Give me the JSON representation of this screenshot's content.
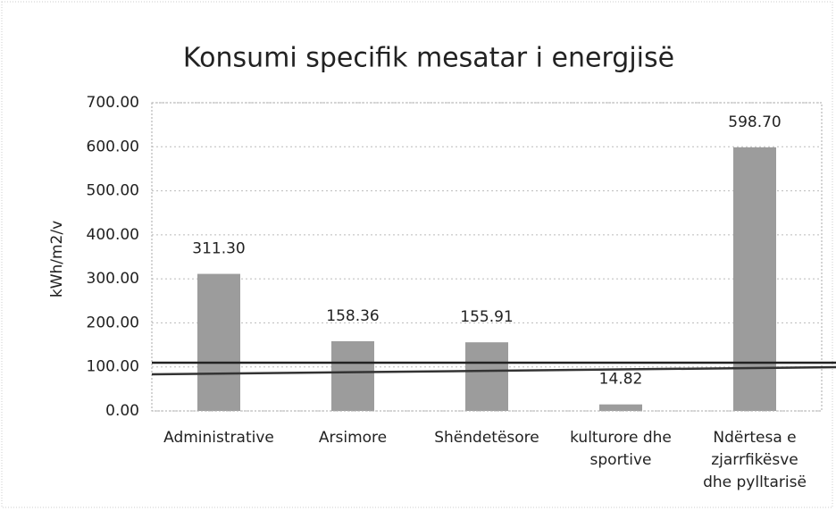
{
  "chart_data": {
    "type": "bar",
    "title": "Konsumi specifik mesatar i energjisë",
    "y_label": "kWh/m2/v",
    "categories": [
      [
        "Administrative"
      ],
      [
        "Arsimore"
      ],
      [
        "Shëndetësore"
      ],
      [
        "kulturore dhe",
        "sportive"
      ],
      [
        "Ndërtesa e",
        "zjarrfikësve",
        "dhe pylltarisë"
      ]
    ],
    "values": [
      311.3,
      158.36,
      155.91,
      14.82,
      598.7
    ],
    "value_labels": [
      "311.30",
      "158.36",
      "155.91",
      "14.82",
      "598.70"
    ],
    "color": "#9c9c9c",
    "ylim": [
      0,
      700
    ],
    "yticks": [
      {
        "value": 0,
        "label": "0.00"
      },
      {
        "value": 100,
        "label": "100.00"
      },
      {
        "value": 200,
        "label": "200.00"
      },
      {
        "value": 300,
        "label": "300.00"
      },
      {
        "value": 400,
        "label": "400.00"
      },
      {
        "value": 500,
        "label": "500.00"
      },
      {
        "value": 600,
        "label": "600.00"
      },
      {
        "value": 700,
        "label": "700.00"
      }
    ],
    "grid": true
  }
}
